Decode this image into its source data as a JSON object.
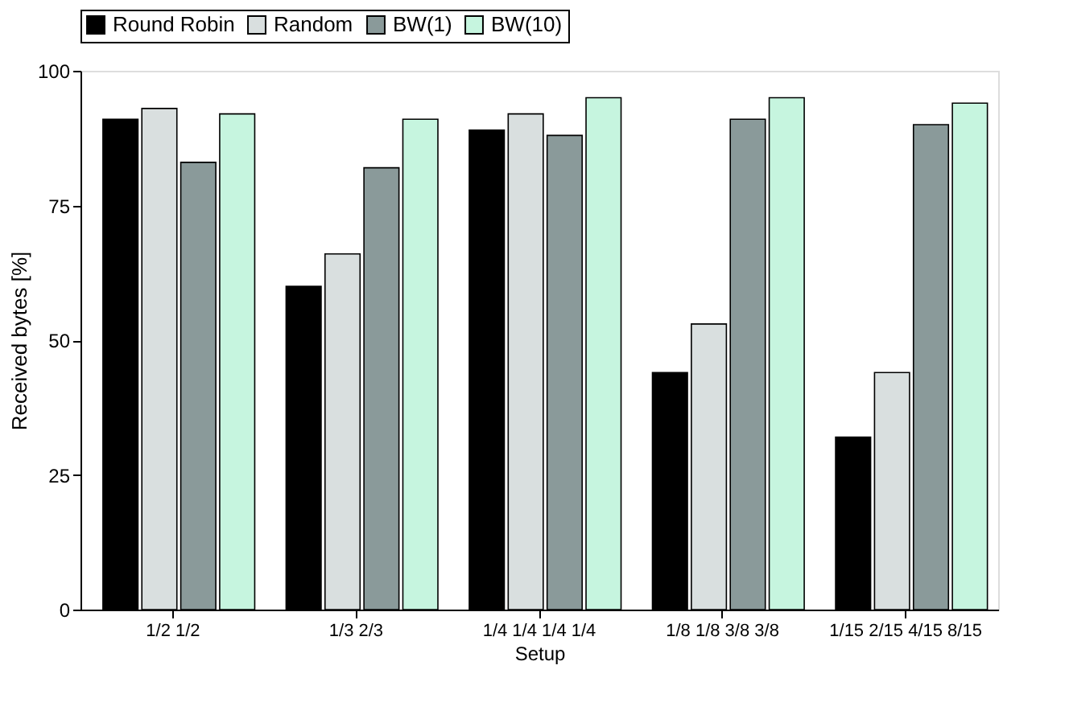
{
  "chart_data": {
    "type": "bar",
    "xlabel": "Setup",
    "ylabel": "Received bytes [%]",
    "categories": [
      "1/2 1/2",
      "1/3 2/3",
      "1/4 1/4 1/4 1/4",
      "1/8 1/8 3/8 3/8",
      "1/15 2/15 4/15 8/15"
    ],
    "series": [
      {
        "name": "Round Robin",
        "color": "#000000",
        "values": [
          91,
          60,
          89,
          44,
          32
        ]
      },
      {
        "name": "Random",
        "color": "#d9dfdf",
        "values": [
          93,
          66,
          92,
          53,
          44
        ]
      },
      {
        "name": "BW(1)",
        "color": "#8a9a9a",
        "values": [
          83,
          82,
          88,
          91,
          90
        ]
      },
      {
        "name": "BW(10)",
        "color": "#c6f5df",
        "values": [
          92,
          91,
          95,
          95,
          94
        ]
      }
    ],
    "ylim": [
      0,
      100
    ],
    "yticks": [
      0,
      25,
      50,
      75,
      100
    ],
    "grid": false,
    "legend": "top"
  }
}
